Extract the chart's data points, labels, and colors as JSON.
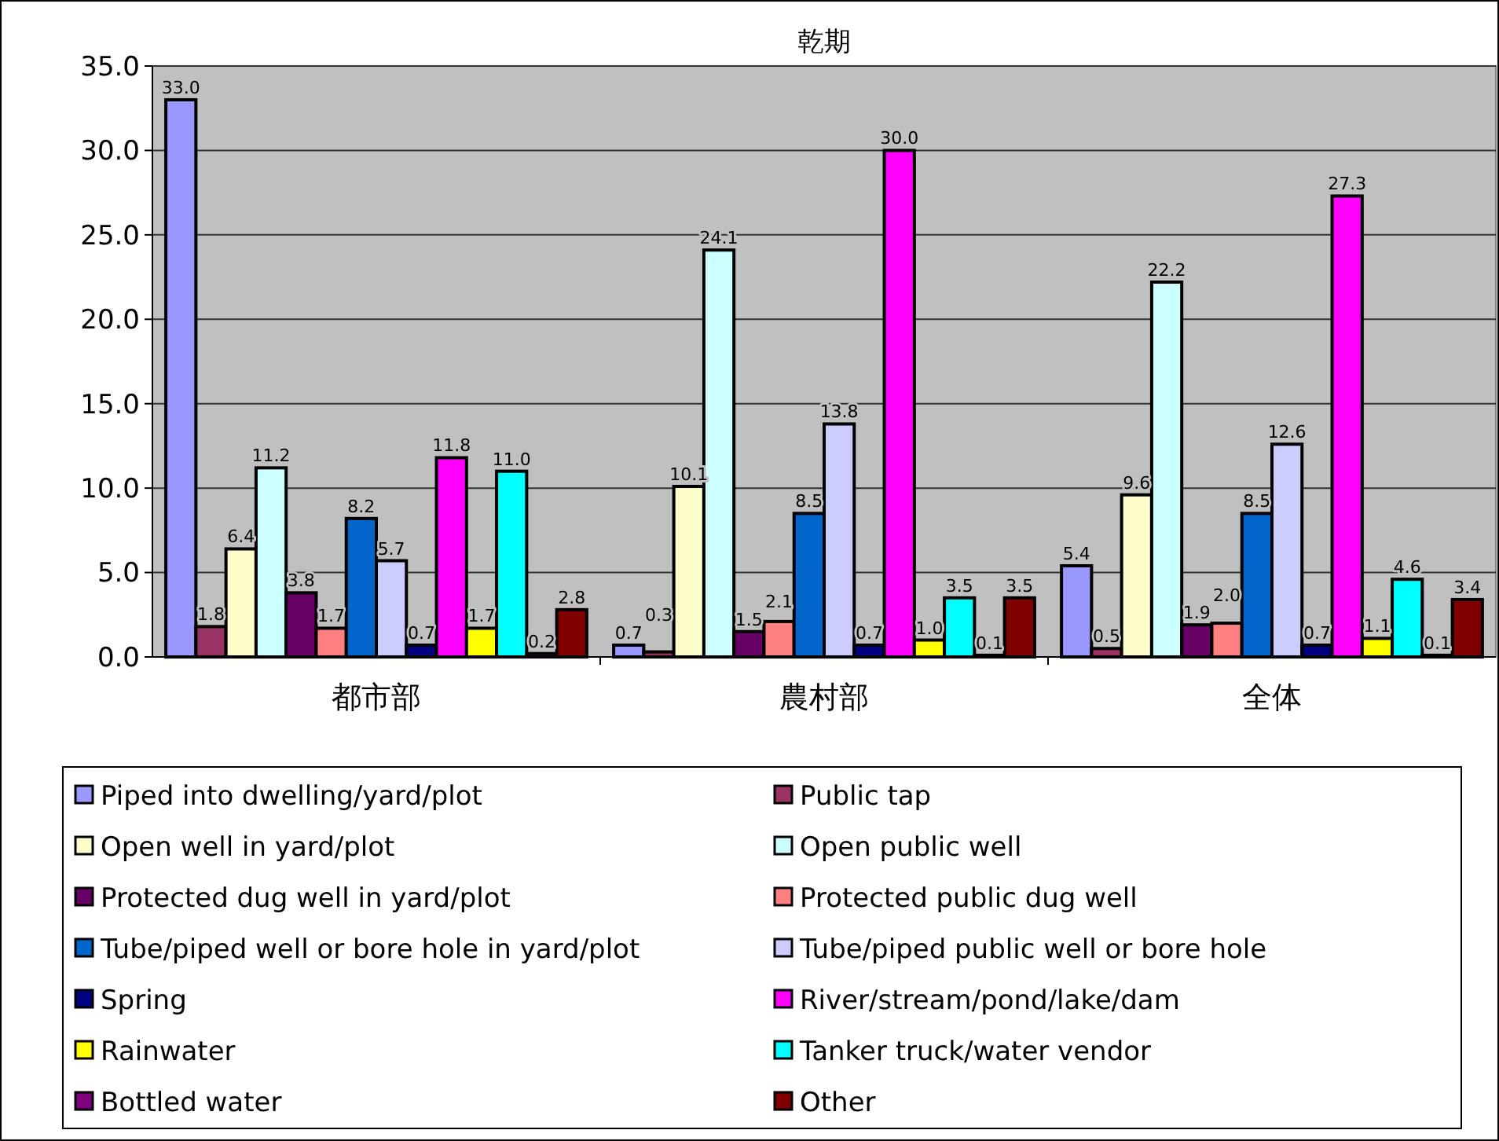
{
  "chart_data": {
    "type": "bar",
    "title": "乾期",
    "categories": [
      "都市部",
      "農村部",
      "全体"
    ],
    "ylim": [
      0,
      35
    ],
    "yticks": [
      {
        "value": 0,
        "label": "0.0"
      },
      {
        "value": 5,
        "label": "5.0"
      },
      {
        "value": 10,
        "label": "10.0"
      },
      {
        "value": 15,
        "label": "15.0"
      },
      {
        "value": 20,
        "label": "20.0"
      },
      {
        "value": 25,
        "label": "25.0"
      },
      {
        "value": 30,
        "label": "30.0"
      },
      {
        "value": 35,
        "label": "35.0"
      }
    ],
    "grid": "y",
    "legend": "bottom",
    "series": [
      {
        "name": "Piped into dwelling/yard/plot",
        "color": "#9999ff",
        "values": [
          33.0,
          0.7,
          5.4
        ],
        "value_labels": [
          "33.0",
          "0.7",
          "5.4"
        ]
      },
      {
        "name": "Public tap",
        "color": "#993366",
        "values": [
          1.8,
          0.3,
          0.5
        ],
        "value_labels": [
          "1.8",
          "0.3",
          "0.5"
        ]
      },
      {
        "name": "Open well in yard/plot",
        "color": "#ffffcc",
        "values": [
          6.4,
          10.1,
          9.6
        ],
        "value_labels": [
          "6.4",
          "10.1",
          "9.6"
        ]
      },
      {
        "name": "Open public well",
        "color": "#ccffff",
        "values": [
          11.2,
          24.1,
          22.2
        ],
        "value_labels": [
          "11.2",
          "24.1",
          "22.2"
        ]
      },
      {
        "name": "Protected dug well in yard/plot",
        "color": "#660066",
        "values": [
          3.8,
          1.5,
          1.9
        ],
        "value_labels": [
          "3.8",
          "1.5",
          "1.9"
        ]
      },
      {
        "name": "Protected public dug well",
        "color": "#ff8080",
        "values": [
          1.7,
          2.1,
          2.0
        ],
        "value_labels": [
          "1.7",
          "2.1",
          "2.0"
        ]
      },
      {
        "name": "Tube/piped well or bore hole in yard/plot",
        "color": "#0066cc",
        "values": [
          8.2,
          8.5,
          8.5
        ],
        "value_labels": [
          "8.2",
          "8.5",
          "8.5"
        ]
      },
      {
        "name": "Tube/piped public well or bore hole",
        "color": "#ccccff",
        "values": [
          5.7,
          13.8,
          12.6
        ],
        "value_labels": [
          "5.7",
          "13.8",
          "12.6"
        ]
      },
      {
        "name": "Spring",
        "color": "#000080",
        "values": [
          0.7,
          0.7,
          0.7
        ],
        "value_labels": [
          "0.7",
          "0.7",
          "0.7"
        ]
      },
      {
        "name": "River/stream/pond/lake/dam",
        "color": "#ff00ff",
        "values": [
          11.8,
          30.0,
          27.3
        ],
        "value_labels": [
          "11.8",
          "30.0",
          "27.3"
        ]
      },
      {
        "name": "Rainwater",
        "color": "#ffff00",
        "values": [
          1.7,
          1.0,
          1.1
        ],
        "value_labels": [
          "1.7",
          "1.0",
          "1.1"
        ]
      },
      {
        "name": "Tanker truck/water vendor",
        "color": "#00ffff",
        "values": [
          11.0,
          3.5,
          4.6
        ],
        "value_labels": [
          "11.0",
          "3.5",
          "4.6"
        ]
      },
      {
        "name": "Bottled water",
        "color": "#800080",
        "values": [
          0.2,
          0.1,
          0.1
        ],
        "value_labels": [
          "0.2",
          "0.1",
          "0.1"
        ]
      },
      {
        "name": "Other",
        "color": "#800000",
        "values": [
          2.8,
          3.5,
          3.4
        ],
        "value_labels": [
          "2.8",
          "3.5",
          "3.4"
        ]
      }
    ]
  }
}
